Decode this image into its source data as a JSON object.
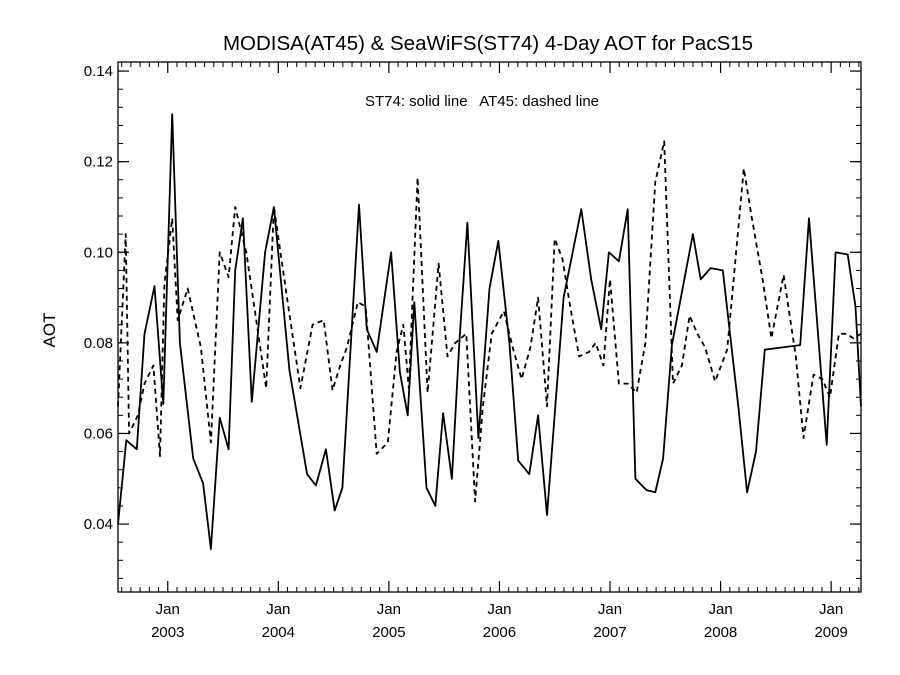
{
  "chart_data": {
    "type": "line",
    "title": "MODISA(AT45) & SeaWiFS(ST74) 4-Day AOT for PacS15",
    "ylabel": "AOT",
    "xlabel": "",
    "annotation": "ST74: solid line   AT45: dashed line",
    "ylim": [
      0.025,
      0.142
    ],
    "xlim": [
      2002.55,
      2009.27
    ],
    "y_ticks": [
      0.04,
      0.06,
      0.08,
      0.1,
      0.12,
      0.14
    ],
    "y_tick_labels": [
      "0.04",
      "0.06",
      "0.08",
      "0.10",
      "0.12",
      "0.14"
    ],
    "x_ticks": [
      2003.0,
      2004.0,
      2005.0,
      2006.0,
      2007.0,
      2008.0,
      2009.0
    ],
    "x_tick_month": [
      "Jan",
      "Jan",
      "Jan",
      "Jan",
      "Jan",
      "Jan",
      "Jan"
    ],
    "x_tick_year": [
      "2003",
      "2004",
      "2005",
      "2006",
      "2007",
      "2008",
      "2009"
    ],
    "series": [
      {
        "name": "ST74",
        "style": "solid",
        "color": "#000000",
        "x": [
          2002.55,
          2002.625,
          2002.72,
          2002.79,
          2002.88,
          2002.96,
          2003.04,
          2003.11,
          2003.23,
          2003.32,
          2003.39,
          2003.47,
          2003.55,
          2003.61,
          2003.68,
          2003.76,
          2003.88,
          2003.96,
          2004.1,
          2004.26,
          2004.34,
          2004.43,
          2004.51,
          2004.58,
          2004.73,
          2004.8,
          2004.89,
          2004.96,
          2005.02,
          2005.1,
          2005.17,
          2005.23,
          2005.34,
          2005.42,
          2005.49,
          2005.57,
          2005.64,
          2005.71,
          2005.81,
          2005.91,
          2005.99,
          2006.09,
          2006.17,
          2006.27,
          2006.35,
          2006.43,
          2006.49,
          2006.58,
          2006.74,
          2006.83,
          2006.92,
          2006.99,
          2007.08,
          2007.16,
          2007.23,
          2007.33,
          2007.41,
          2007.48,
          2007.56,
          2007.75,
          2007.82,
          2007.91,
          2008.02,
          2008.16,
          2008.24,
          2008.32,
          2008.4,
          2008.72,
          2008.8,
          2008.96,
          2009.04,
          2009.15,
          2009.22,
          2009.27
        ],
        "y": [
          0.04,
          0.0585,
          0.0565,
          0.082,
          0.0925,
          0.0665,
          0.1305,
          0.08,
          0.0545,
          0.049,
          0.0345,
          0.0635,
          0.0565,
          0.096,
          0.1075,
          0.067,
          0.1,
          0.11,
          0.074,
          0.051,
          0.0485,
          0.0565,
          0.043,
          0.048,
          0.1105,
          0.083,
          0.078,
          0.09,
          0.1,
          0.0735,
          0.064,
          0.089,
          0.048,
          0.044,
          0.0645,
          0.05,
          0.081,
          0.1065,
          0.059,
          0.092,
          0.1025,
          0.08,
          0.054,
          0.051,
          0.064,
          0.042,
          0.061,
          0.09,
          0.1095,
          0.094,
          0.083,
          0.1,
          0.098,
          0.1095,
          0.05,
          0.0475,
          0.047,
          0.0545,
          0.0795,
          0.104,
          0.094,
          0.0965,
          0.096,
          0.066,
          0.047,
          0.056,
          0.0785,
          0.0795,
          0.1075,
          0.0575,
          0.1,
          0.0995,
          0.088,
          0.066
        ]
      },
      {
        "name": "AT45",
        "style": "dashed",
        "color": "#000000",
        "x": [
          2002.55,
          2002.62,
          2002.65,
          2002.73,
          2002.79,
          2002.87,
          2002.93,
          2002.97,
          2003.04,
          2003.09,
          2003.18,
          2003.3,
          2003.39,
          2003.47,
          2003.55,
          2003.61,
          2003.71,
          2003.89,
          2003.96,
          2004.09,
          2004.2,
          2004.31,
          2004.41,
          2004.49,
          2004.56,
          2004.62,
          2004.72,
          2004.79,
          2004.89,
          2004.99,
          2005.07,
          2005.13,
          2005.18,
          2005.26,
          2005.35,
          2005.45,
          2005.53,
          2005.6,
          2005.7,
          2005.78,
          2005.85,
          2005.93,
          2006.04,
          2006.12,
          2006.2,
          2006.28,
          2006.35,
          2006.43,
          2006.5,
          2006.57,
          2006.64,
          2006.72,
          2006.81,
          2006.87,
          2006.94,
          2007.0,
          2007.08,
          2007.16,
          2007.24,
          2007.32,
          2007.41,
          2007.49,
          2007.57,
          2007.65,
          2007.72,
          2007.79,
          2007.86,
          2007.95,
          2008.06,
          2008.21,
          2008.28,
          2008.38,
          2008.46,
          2008.57,
          2008.68,
          2008.75,
          2008.84,
          2008.92,
          2008.99,
          2009.07,
          2009.14,
          2009.2,
          2009.27
        ],
        "y": [
          0.066,
          0.104,
          0.06,
          0.064,
          0.071,
          0.075,
          0.055,
          0.093,
          0.1075,
          0.085,
          0.092,
          0.079,
          0.058,
          0.1,
          0.0945,
          0.11,
          0.1,
          0.07,
          0.11,
          0.088,
          0.07,
          0.084,
          0.085,
          0.0695,
          0.075,
          0.079,
          0.089,
          0.088,
          0.0555,
          0.058,
          0.078,
          0.084,
          0.07,
          0.1165,
          0.069,
          0.0975,
          0.077,
          0.08,
          0.082,
          0.045,
          0.066,
          0.082,
          0.087,
          0.079,
          0.072,
          0.079,
          0.09,
          0.066,
          0.103,
          0.0985,
          0.088,
          0.077,
          0.078,
          0.08,
          0.075,
          0.094,
          0.071,
          0.071,
          0.069,
          0.08,
          0.1155,
          0.1245,
          0.071,
          0.075,
          0.086,
          0.082,
          0.079,
          0.0715,
          0.0785,
          0.1185,
          0.108,
          0.094,
          0.081,
          0.095,
          0.077,
          0.059,
          0.073,
          0.072,
          0.068,
          0.082,
          0.082,
          0.081,
          0.082
        ]
      }
    ]
  }
}
